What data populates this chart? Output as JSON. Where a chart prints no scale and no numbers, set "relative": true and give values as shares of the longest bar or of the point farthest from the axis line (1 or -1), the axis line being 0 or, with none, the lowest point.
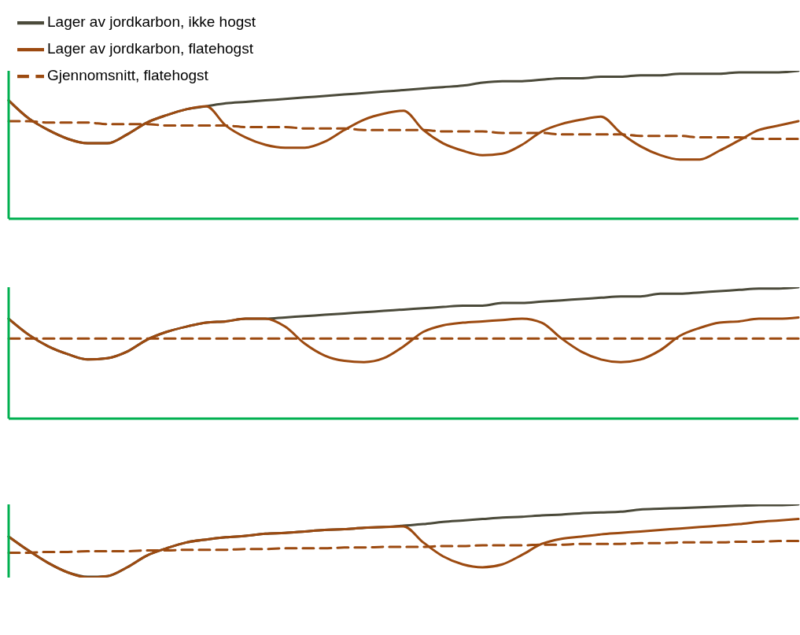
{
  "chart_data": [
    {
      "type": "line",
      "relative": true,
      "tick_labels": false,
      "legend": "top left",
      "categories": [
        null,
        null,
        null,
        null,
        null,
        null,
        null,
        null,
        null,
        null,
        null,
        null,
        null,
        null,
        null,
        null,
        null,
        null,
        null,
        null,
        null,
        null,
        null,
        null,
        null,
        null,
        null,
        null,
        null,
        null,
        null,
        null,
        null,
        null,
        null,
        null,
        null,
        null,
        null,
        null,
        null
      ],
      "series": [
        {
          "name": "Lager av jordkarbon, ikke hogst",
          "color": "#4b4a3a",
          "values": [
            0.8,
            0.68,
            0.6,
            0.54,
            0.51,
            0.51,
            0.57,
            0.65,
            0.7,
            0.74,
            0.76,
            0.78,
            0.79,
            0.8,
            0.81,
            0.82,
            0.83,
            0.84,
            0.85,
            0.86,
            0.87,
            0.88,
            0.89,
            0.9,
            0.92,
            0.93,
            0.93,
            0.94,
            0.95,
            0.95,
            0.96,
            0.96,
            0.97,
            0.97,
            0.98,
            0.98,
            0.98,
            0.99,
            0.99,
            0.99,
            1
          ]
        },
        {
          "name": "Lager av jordkarbon, flatehogst",
          "color": "#9c4a10",
          "values": [
            0.8,
            0.68,
            0.6,
            0.54,
            0.51,
            0.51,
            0.57,
            0.65,
            0.7,
            0.74,
            0.76,
            0.63,
            0.55,
            0.5,
            0.48,
            0.48,
            0.52,
            0.6,
            0.67,
            0.71,
            0.73,
            0.6,
            0.51,
            0.46,
            0.43,
            0.44,
            0.5,
            0.59,
            0.64,
            0.67,
            0.69,
            0.58,
            0.49,
            0.43,
            0.4,
            0.4,
            0.46,
            0.53,
            0.6,
            0.63,
            0.66
          ]
        },
        {
          "name": "Gjennomsnitt, flatehogst",
          "color": "#9c4a10",
          "line_style": "dashed",
          "values": [
            0.66,
            0.66,
            0.65,
            0.65,
            0.65,
            0.64,
            0.64,
            0.64,
            0.63,
            0.63,
            0.63,
            0.63,
            0.62,
            0.62,
            0.62,
            0.61,
            0.61,
            0.61,
            0.6,
            0.6,
            0.6,
            0.6,
            0.59,
            0.59,
            0.59,
            0.58,
            0.58,
            0.58,
            0.57,
            0.57,
            0.57,
            0.57,
            0.56,
            0.56,
            0.56,
            0.55,
            0.55,
            0.55,
            0.54,
            0.54,
            0.54
          ]
        }
      ]
    },
    {
      "type": "line",
      "relative": true,
      "tick_labels": false,
      "categories": [
        null,
        null,
        null,
        null,
        null,
        null,
        null,
        null,
        null,
        null,
        null,
        null,
        null,
        null,
        null,
        null,
        null,
        null,
        null,
        null,
        null,
        null,
        null,
        null,
        null,
        null,
        null,
        null,
        null,
        null,
        null,
        null,
        null,
        null,
        null,
        null,
        null,
        null,
        null,
        null,
        null
      ],
      "series": [
        {
          "color": "#4b4a3a",
          "values": [
            0.76,
            0.64,
            0.55,
            0.49,
            0.45,
            0.46,
            0.51,
            0.6,
            0.66,
            0.7,
            0.73,
            0.74,
            0.76,
            0.76,
            0.77,
            0.78,
            0.79,
            0.8,
            0.81,
            0.82,
            0.83,
            0.84,
            0.85,
            0.86,
            0.86,
            0.88,
            0.88,
            0.89,
            0.9,
            0.91,
            0.92,
            0.93,
            0.93,
            0.95,
            0.95,
            0.96,
            0.97,
            0.98,
            0.99,
            0.99,
            1
          ]
        },
        {
          "color": "#9c4a10",
          "values": [
            0.76,
            0.64,
            0.55,
            0.49,
            0.45,
            0.46,
            0.51,
            0.6,
            0.66,
            0.7,
            0.73,
            0.74,
            0.76,
            0.76,
            0.7,
            0.57,
            0.48,
            0.44,
            0.43,
            0.46,
            0.55,
            0.66,
            0.71,
            0.73,
            0.74,
            0.75,
            0.76,
            0.73,
            0.61,
            0.51,
            0.45,
            0.43,
            0.45,
            0.52,
            0.63,
            0.69,
            0.73,
            0.74,
            0.76,
            0.76,
            0.77
          ]
        },
        {
          "color": "#9c4a10",
          "line_style": "dashed",
          "values": [
            0.61,
            0.61,
            0.61,
            0.61,
            0.61,
            0.61,
            0.61,
            0.61,
            0.61,
            0.61,
            0.61,
            0.61,
            0.61,
            0.61,
            0.61,
            0.61,
            0.61,
            0.61,
            0.61,
            0.61,
            0.61,
            0.61,
            0.61,
            0.61,
            0.61,
            0.61,
            0.61,
            0.61,
            0.61,
            0.61,
            0.61,
            0.61,
            0.61,
            0.61,
            0.61,
            0.61,
            0.61,
            0.61,
            0.61,
            0.61,
            0.61
          ]
        }
      ]
    },
    {
      "type": "line",
      "relative": true,
      "tick_labels": false,
      "categories": [
        null,
        null,
        null,
        null,
        null,
        null,
        null,
        null,
        null,
        null,
        null,
        null,
        null,
        null,
        null,
        null,
        null,
        null,
        null,
        null,
        null,
        null,
        null,
        null,
        null,
        null,
        null,
        null,
        null,
        null,
        null,
        null,
        null,
        null,
        null,
        null,
        null,
        null,
        null,
        null,
        null
      ],
      "series": [
        {
          "color": "#4b4a3a",
          "values": [
            0.56,
            0.37,
            0.2,
            0.07,
            0.01,
            0.02,
            0.14,
            0.3,
            0.4,
            0.48,
            0.52,
            0.55,
            0.57,
            0.6,
            0.61,
            0.63,
            0.65,
            0.66,
            0.68,
            0.69,
            0.71,
            0.73,
            0.76,
            0.78,
            0.8,
            0.82,
            0.83,
            0.85,
            0.86,
            0.88,
            0.89,
            0.9,
            0.93,
            0.94,
            0.95,
            0.96,
            0.97,
            0.98,
            0.99,
            0.99,
            1
          ]
        },
        {
          "color": "#9c4a10",
          "values": [
            0.56,
            0.37,
            0.2,
            0.07,
            0,
            0.02,
            0.14,
            0.3,
            0.4,
            0.48,
            0.52,
            0.55,
            0.57,
            0.6,
            0.61,
            0.63,
            0.65,
            0.66,
            0.68,
            0.69,
            0.7,
            0.48,
            0.29,
            0.18,
            0.14,
            0.18,
            0.31,
            0.46,
            0.53,
            0.56,
            0.59,
            0.61,
            0.63,
            0.65,
            0.67,
            0.69,
            0.71,
            0.73,
            0.76,
            0.78,
            0.8
          ]
        },
        {
          "color": "#9c4a10",
          "line_style": "dashed",
          "values": [
            0.34,
            0.34,
            0.35,
            0.35,
            0.36,
            0.36,
            0.36,
            0.37,
            0.37,
            0.38,
            0.38,
            0.38,
            0.39,
            0.39,
            0.4,
            0.4,
            0.4,
            0.41,
            0.41,
            0.42,
            0.42,
            0.42,
            0.43,
            0.43,
            0.44,
            0.44,
            0.44,
            0.45,
            0.45,
            0.46,
            0.46,
            0.46,
            0.47,
            0.47,
            0.48,
            0.48,
            0.48,
            0.49,
            0.49,
            0.5,
            0.5
          ]
        }
      ]
    }
  ]
}
